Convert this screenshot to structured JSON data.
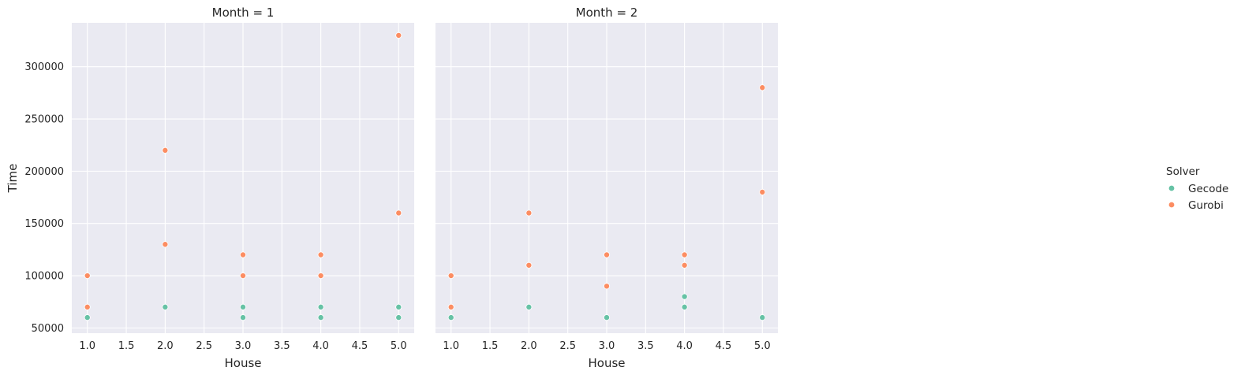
{
  "chart_data": {
    "type": "scatter",
    "xlabel": "House",
    "ylabel": "Time",
    "xlim": [
      0.8,
      5.2
    ],
    "ylim": [
      45000,
      342000
    ],
    "x_ticks": [
      "1.0",
      "1.5",
      "2.0",
      "2.5",
      "3.0",
      "3.5",
      "4.0",
      "4.5",
      "5.0"
    ],
    "y_ticks": [
      "50000",
      "100000",
      "150000",
      "200000",
      "250000",
      "300000"
    ],
    "grid": true,
    "background": "#eaeaf2",
    "legend": {
      "title": "Solver",
      "position": "right",
      "entries": [
        {
          "name": "Gecode",
          "color": "#66c2a5"
        },
        {
          "name": "Gurobi",
          "color": "#fc8d62"
        }
      ]
    },
    "panels": [
      {
        "title": "Month = 1",
        "series": [
          {
            "name": "Gecode",
            "points": [
              [
                1,
                60000
              ],
              [
                2,
                70000
              ],
              [
                3,
                60000
              ],
              [
                3,
                70000
              ],
              [
                4,
                60000
              ],
              [
                4,
                70000
              ],
              [
                5,
                60000
              ],
              [
                5,
                70000
              ]
            ]
          },
          {
            "name": "Gurobi",
            "points": [
              [
                1,
                70000
              ],
              [
                1,
                100000
              ],
              [
                2,
                130000
              ],
              [
                2,
                220000
              ],
              [
                3,
                100000
              ],
              [
                3,
                120000
              ],
              [
                4,
                100000
              ],
              [
                4,
                120000
              ],
              [
                5,
                160000
              ],
              [
                5,
                330000
              ]
            ]
          }
        ]
      },
      {
        "title": "Month = 2",
        "series": [
          {
            "name": "Gecode",
            "points": [
              [
                1,
                60000
              ],
              [
                2,
                70000
              ],
              [
                3,
                60000
              ],
              [
                4,
                70000
              ],
              [
                4,
                80000
              ],
              [
                5,
                60000
              ]
            ]
          },
          {
            "name": "Gurobi",
            "points": [
              [
                1,
                70000
              ],
              [
                1,
                100000
              ],
              [
                2,
                110000
              ],
              [
                2,
                160000
              ],
              [
                3,
                90000
              ],
              [
                3,
                120000
              ],
              [
                4,
                110000
              ],
              [
                4,
                120000
              ],
              [
                5,
                180000
              ],
              [
                5,
                280000
              ]
            ]
          }
        ]
      }
    ]
  }
}
